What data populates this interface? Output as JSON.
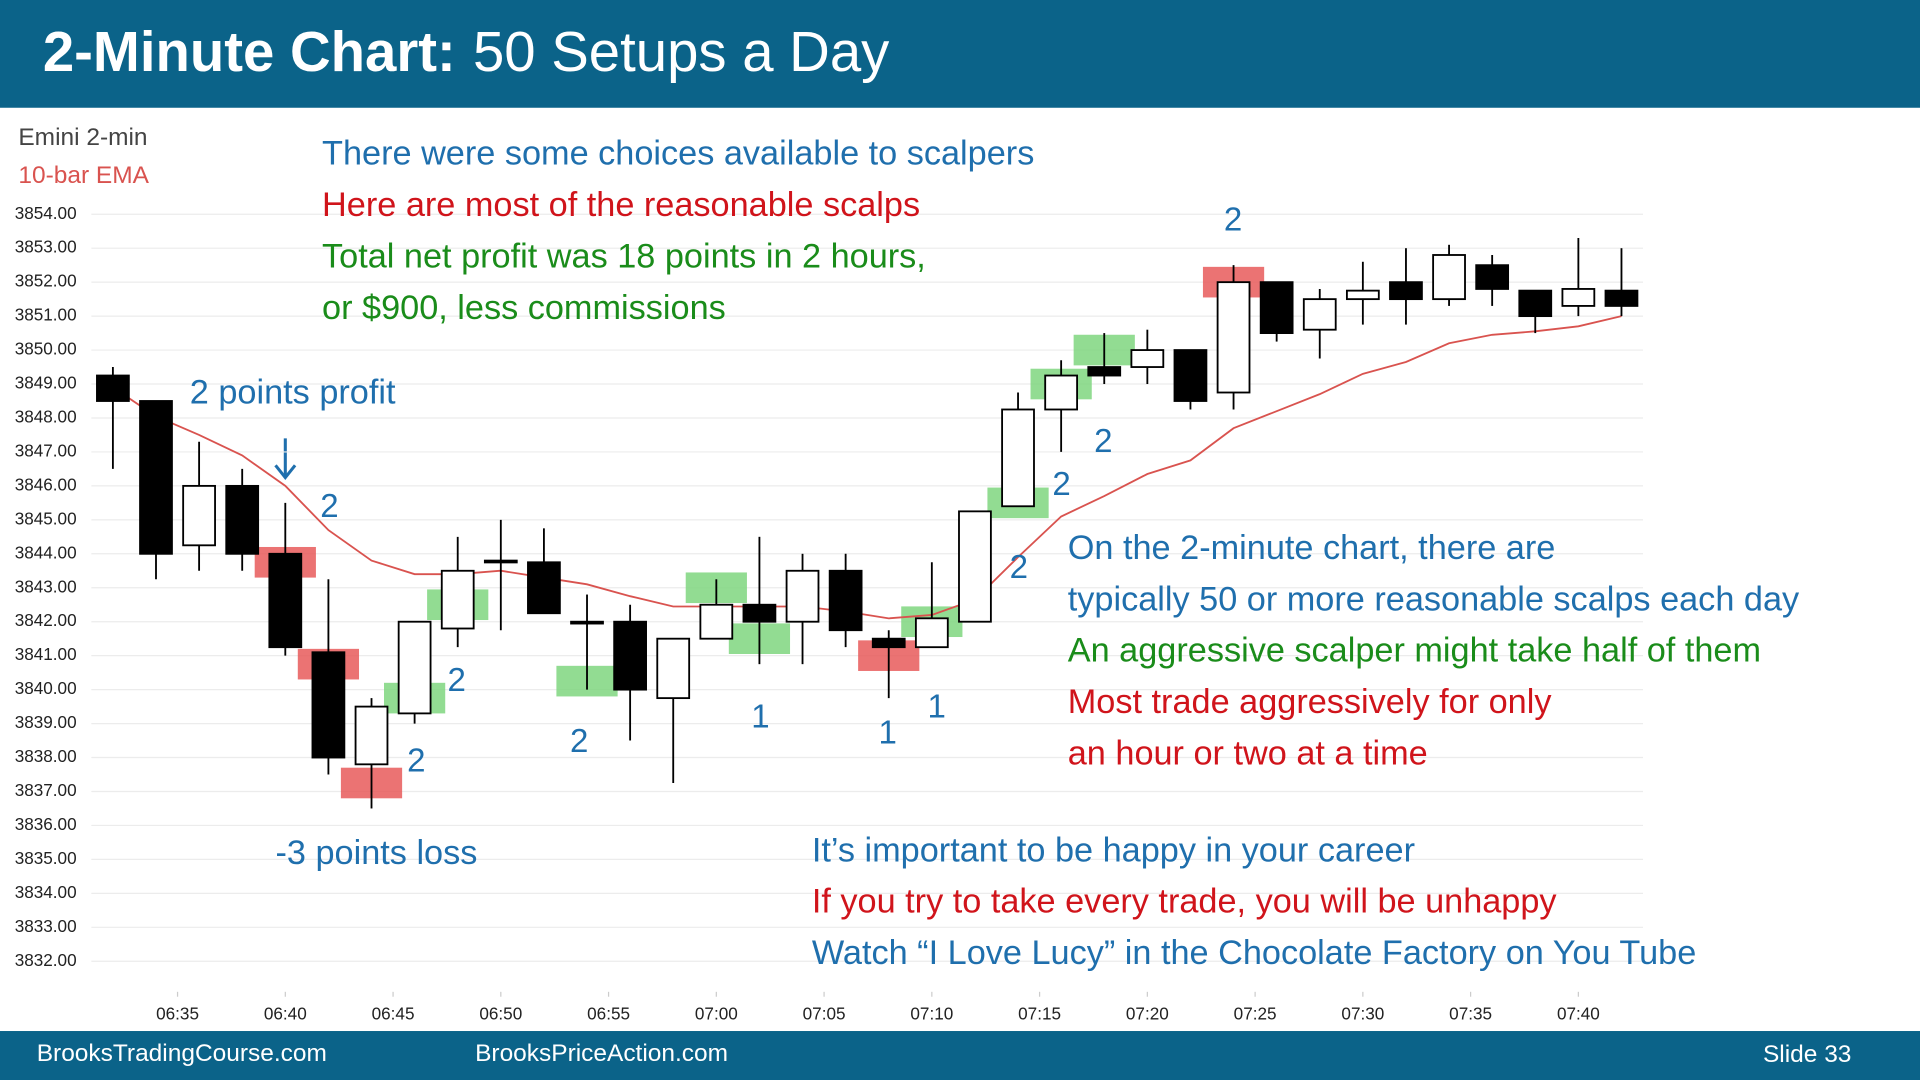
{
  "chart_data": {
    "type": "candlestick",
    "title": "2-Minute Chart:",
    "subtitle": "50 Setups a Day",
    "symbol_label": "Emini 2-min",
    "x": [
      "06:32",
      "06:34",
      "06:36",
      "06:38",
      "06:40",
      "06:42",
      "06:44",
      "06:46",
      "06:48",
      "06:50",
      "06:52",
      "06:54",
      "06:56",
      "06:58",
      "07:00",
      "07:02",
      "07:04",
      "07:06",
      "07:08",
      "07:10",
      "07:12",
      "07:14",
      "07:16",
      "07:18",
      "07:20",
      "07:22",
      "07:24",
      "07:26",
      "07:28",
      "07:30",
      "07:32",
      "07:34",
      "07:36",
      "07:38",
      "07:40",
      "07:42"
    ],
    "open": [
      3849.25,
      3848.5,
      3844.25,
      3846.0,
      3844.0,
      3841.1,
      3837.8,
      3839.3,
      3841.8,
      3843.75,
      3843.75,
      3842.0,
      3842.0,
      3839.75,
      3841.5,
      3842.5,
      3842.0,
      3843.5,
      3841.5,
      3841.25,
      3842.0,
      3845.4,
      3848.25,
      3849.5,
      3849.5,
      3850.0,
      3848.75,
      3852.0,
      3850.6,
      3851.5,
      3852.0,
      3851.5,
      3852.5,
      3851.75,
      3851.3,
      3851.75
    ],
    "high": [
      3849.5,
      3848.5,
      3847.3,
      3846.5,
      3845.5,
      3843.25,
      3839.75,
      3842.0,
      3844.5,
      3845.0,
      3844.75,
      3842.8,
      3842.5,
      3841.5,
      3843.25,
      3844.5,
      3844.0,
      3844.0,
      3841.75,
      3843.75,
      3845.25,
      3848.75,
      3849.7,
      3850.5,
      3850.6,
      3850.0,
      3852.5,
      3852.0,
      3851.8,
      3852.6,
      3853.0,
      3853.1,
      3852.8,
      3851.75,
      3853.3,
      3853.0
    ],
    "low": [
      3846.5,
      3843.25,
      3843.5,
      3843.5,
      3841.0,
      3837.5,
      3836.5,
      3839.0,
      3841.25,
      3841.75,
      3842.25,
      3840.0,
      3838.5,
      3837.25,
      3841.5,
      3840.75,
      3840.75,
      3841.25,
      3839.75,
      3841.25,
      3842.0,
      3845.5,
      3847.0,
      3849.0,
      3849.0,
      3848.25,
      3848.25,
      3850.25,
      3849.75,
      3850.75,
      3850.75,
      3851.3,
      3851.3,
      3850.5,
      3851.0,
      3851.0
    ],
    "close": [
      3848.5,
      3844.0,
      3846.0,
      3844.0,
      3841.25,
      3838.0,
      3839.5,
      3842.0,
      3843.5,
      3843.8,
      3842.25,
      3841.95,
      3840.0,
      3841.5,
      3842.5,
      3842.0,
      3843.5,
      3841.75,
      3841.25,
      3842.1,
      3845.25,
      3848.25,
      3849.25,
      3849.25,
      3850.0,
      3848.5,
      3852.0,
      3850.5,
      3851.5,
      3851.75,
      3851.5,
      3852.8,
      3851.8,
      3851.0,
      3851.8,
      3851.3
    ],
    "up_color": "#ffffff",
    "down_color": "#000000",
    "series": [
      {
        "name": "10-bar EMA",
        "color": "#d9534f",
        "values": [
          3848.9,
          3848.05,
          3847.5,
          3846.9,
          3846.0,
          3844.7,
          3843.8,
          3843.4,
          3843.4,
          3843.5,
          3843.3,
          3843.1,
          3842.75,
          3842.45,
          3842.45,
          3842.45,
          3842.45,
          3842.3,
          3842.1,
          3842.2,
          3842.65,
          3843.9,
          3845.1,
          3845.7,
          3846.35,
          3846.75,
          3847.7,
          3848.2,
          3848.7,
          3849.3,
          3849.65,
          3850.2,
          3850.45,
          3850.55,
          3850.7,
          3851.0
        ]
      }
    ],
    "xlim": [
      "06:31",
      "07:43"
    ],
    "xticks": [
      "06:35",
      "06:40",
      "06:45",
      "06:50",
      "06:55",
      "07:00",
      "07:05",
      "07:10",
      "07:15",
      "07:20",
      "07:25",
      "07:30",
      "07:35",
      "07:40"
    ],
    "ylim": [
      3831.5,
      3854.5
    ],
    "yticks": [
      {
        "value": 3832,
        "label": "3832.00"
      },
      {
        "value": 3833,
        "label": "3833.00"
      },
      {
        "value": 3834,
        "label": "3834.00"
      },
      {
        "value": 3835,
        "label": "3835.00"
      },
      {
        "value": 3836,
        "label": "3836.00"
      },
      {
        "value": 3837,
        "label": "3837.00"
      },
      {
        "value": 3838,
        "label": "3838.00"
      },
      {
        "value": 3839,
        "label": "3839.00"
      },
      {
        "value": 3840,
        "label": "3840.00"
      },
      {
        "value": 3841,
        "label": "3841.00"
      },
      {
        "value": 3842,
        "label": "3842.00"
      },
      {
        "value": 3843,
        "label": "3843.00"
      },
      {
        "value": 3844,
        "label": "3844.00"
      },
      {
        "value": 3845,
        "label": "3845.00"
      },
      {
        "value": 3846,
        "label": "3846.00"
      },
      {
        "value": 3847,
        "label": "3847.00"
      },
      {
        "value": 3848,
        "label": "3848.00"
      },
      {
        "value": 3849,
        "label": "3849.00"
      },
      {
        "value": 3850,
        "label": "3850.00"
      },
      {
        "value": 3851,
        "label": "3851.00"
      },
      {
        "value": 3852,
        "label": "3852.00"
      },
      {
        "value": 3853,
        "label": "3853.00"
      },
      {
        "value": 3854,
        "label": "3854.00"
      }
    ],
    "grid": true,
    "trade_marks": [
      {
        "x": "06:40",
        "y": 3843.75,
        "color": "#e85a5a"
      },
      {
        "x": "06:42",
        "y": 3840.75,
        "color": "#e85a5a"
      },
      {
        "x": "06:44",
        "y": 3837.25,
        "color": "#e85a5a"
      },
      {
        "x": "06:46",
        "y": 3839.75,
        "color": "#7fd67f"
      },
      {
        "x": "06:48",
        "y": 3842.5,
        "color": "#7fd67f"
      },
      {
        "x": "06:54",
        "y": 3840.25,
        "color": "#7fd67f"
      },
      {
        "x": "07:00",
        "y": 3843.0,
        "color": "#7fd67f"
      },
      {
        "x": "07:02",
        "y": 3841.5,
        "color": "#7fd67f"
      },
      {
        "x": "07:08",
        "y": 3841.0,
        "color": "#e85a5a"
      },
      {
        "x": "07:10",
        "y": 3842.0,
        "color": "#7fd67f"
      },
      {
        "x": "07:14",
        "y": 3845.5,
        "color": "#7fd67f"
      },
      {
        "x": "07:16",
        "y": 3849.0,
        "color": "#7fd67f"
      },
      {
        "x": "07:18",
        "y": 3850.0,
        "color": "#7fd67f"
      },
      {
        "x": "07:24",
        "y": 3852.0,
        "color": "#e85a5a"
      }
    ],
    "scalp_labels": [
      "2",
      "2",
      "2",
      "2",
      "1",
      "1",
      "1",
      "2",
      "2",
      "2",
      "2"
    ],
    "annotations": [
      {
        "text": "There were some choices available to scalpers",
        "color": "#1f6fad"
      },
      {
        "text": "Here are most of the reasonable scalps",
        "color": "#d0141b"
      },
      {
        "text": "Total net profit was 18 points in 2 hours,",
        "color": "#1a8c1a"
      },
      {
        "text": "or $900, less commissions",
        "color": "#1a8c1a"
      },
      {
        "text": "2 points profit",
        "color": "#1f6fad"
      },
      {
        "text": "-3 points loss",
        "color": "#1f6fad"
      },
      {
        "text": "On the 2-minute chart, there are",
        "color": "#1f6fad"
      },
      {
        "text": "typically 50 or more reasonable scalps each day",
        "color": "#1f6fad"
      },
      {
        "text": "An aggressive scalper might take half of them",
        "color": "#1a8c1a"
      },
      {
        "text": "Most trade aggressively for only",
        "color": "#d0141b"
      },
      {
        "text": "an hour or two at a time",
        "color": "#d0141b"
      },
      {
        "text": "It’s important to be happy in your career",
        "color": "#1f6fad"
      },
      {
        "text": "If you try to take every trade, you will be unhappy",
        "color": "#d0141b"
      },
      {
        "text": "Watch “I Love Lucy” in the Chocolate Factory on You Tube",
        "color": "#1f6fad"
      }
    ]
  },
  "footer": {
    "left": "BrooksTradingCourse.com",
    "center": "BrooksPriceAction.com",
    "slide": "Slide 33"
  }
}
